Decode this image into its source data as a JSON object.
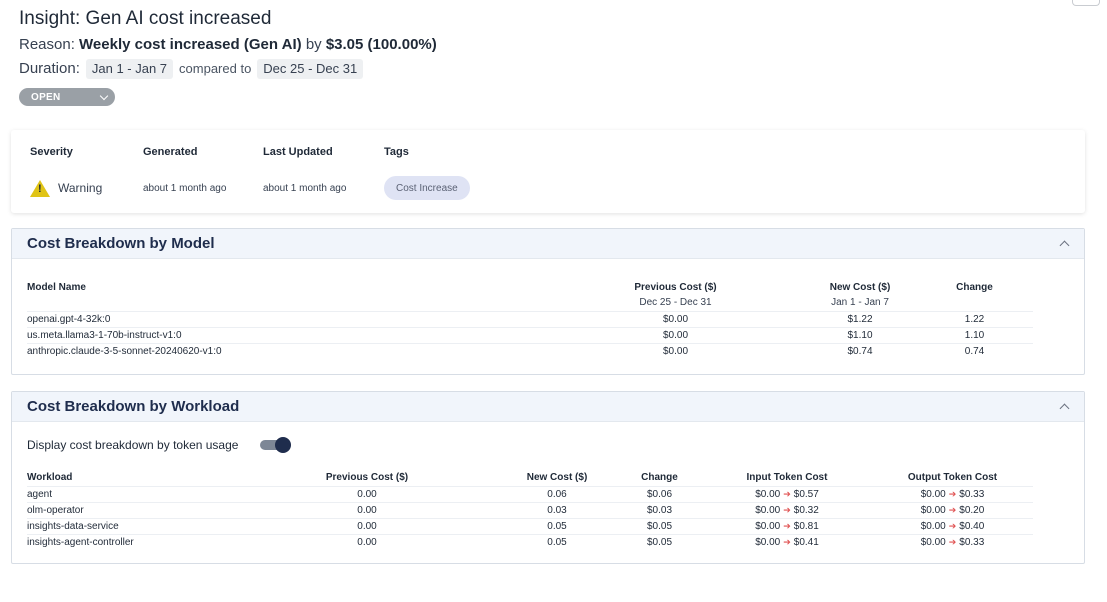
{
  "insight": {
    "title": "Insight: Gen AI cost increased",
    "reason_label": "Reason:",
    "reason_text": "Weekly cost increased (Gen AI)",
    "reason_by": "by",
    "reason_amount": "$3.05 (100.00%)",
    "duration_label": "Duration:",
    "current_range": "Jan 1 - Jan 7",
    "compared_to": "compared to",
    "previous_range": "Dec 25 - Dec 31",
    "status": "OPEN"
  },
  "meta": {
    "severity_label": "Severity",
    "severity_value": "Warning",
    "generated_label": "Generated",
    "generated_value": "about 1 month ago",
    "updated_label": "Last Updated",
    "updated_value": "about 1 month ago",
    "tags_label": "Tags",
    "tag": "Cost Increase"
  },
  "model_panel": {
    "title": "Cost Breakdown by Model",
    "columns": [
      "Model Name",
      "Previous Cost ($)",
      "New Cost ($)",
      "Change"
    ],
    "prev_range": "Dec 25 - Dec 31",
    "new_range": "Jan 1 - Jan 7",
    "rows": [
      {
        "model": "openai.gpt-4-32k:0",
        "prev": "$0.00",
        "new": "$1.22",
        "change": "1.22"
      },
      {
        "model": "us.meta.llama3-1-70b-instruct-v1:0",
        "prev": "$0.00",
        "new": "$1.10",
        "change": "1.10"
      },
      {
        "model": "anthropic.claude-3-5-sonnet-20240620-v1:0",
        "prev": "$0.00",
        "new": "$0.74",
        "change": "0.74"
      }
    ]
  },
  "workload_panel": {
    "title": "Cost Breakdown by Workload",
    "toggle_label": "Display cost breakdown by token usage",
    "toggle_on": true,
    "columns": [
      "Workload",
      "Previous Cost ($)",
      "New Cost ($)",
      "Change",
      "Input Token Cost",
      "Output Token Cost"
    ],
    "rows": [
      {
        "workload": "agent",
        "prev": "0.00",
        "new": "0.06",
        "change": "$0.06",
        "in_from": "$0.00",
        "in_to": "$0.57",
        "out_from": "$0.00",
        "out_to": "$0.33"
      },
      {
        "workload": "olm-operator",
        "prev": "0.00",
        "new": "0.03",
        "change": "$0.03",
        "in_from": "$0.00",
        "in_to": "$0.32",
        "out_from": "$0.00",
        "out_to": "$0.20"
      },
      {
        "workload": "insights-data-service",
        "prev": "0.00",
        "new": "0.05",
        "change": "$0.05",
        "in_from": "$0.00",
        "in_to": "$0.81",
        "out_from": "$0.00",
        "out_to": "$0.40"
      },
      {
        "workload": "insights-agent-controller",
        "prev": "0.00",
        "new": "0.05",
        "change": "$0.05",
        "in_from": "$0.00",
        "in_to": "$0.41",
        "out_from": "$0.00",
        "out_to": "$0.33"
      }
    ]
  },
  "colors": {
    "accent_navy": "#1f2d4d",
    "warning": "#e0c416",
    "increase_arrow": "#e05252",
    "tag_bg": "#dfe3f4"
  }
}
